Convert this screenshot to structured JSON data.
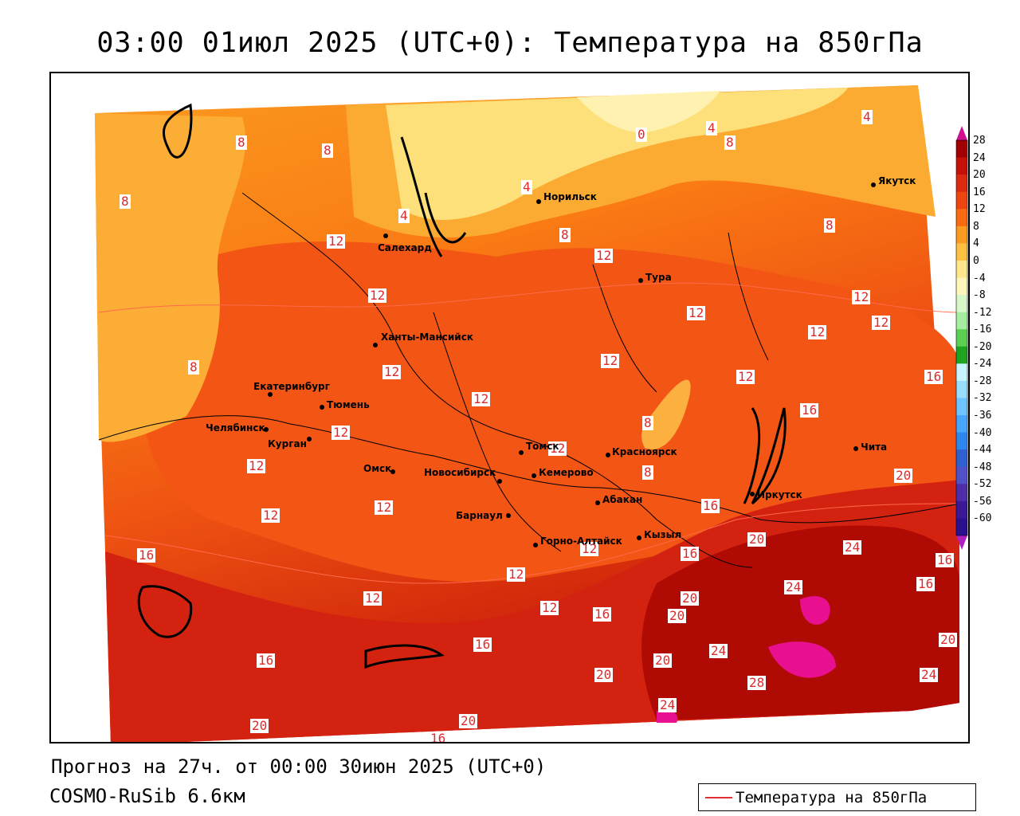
{
  "title": "03:00 01июл 2025 (UTC+0): Температура на 850гПа",
  "footer": {
    "forecast": "Прогноз на 27ч. от 00:00 30июн 2025 (UTC+0)",
    "model": "COSMO-RuSib 6.6км"
  },
  "legend": {
    "label": "Температура на 850гПа",
    "line_color": "#e03030"
  },
  "colorbar": {
    "ticks": [
      "28",
      "24",
      "20",
      "16",
      "12",
      "8",
      "4",
      "0",
      "-4",
      "-8",
      "-12",
      "-16",
      "-20",
      "-24",
      "-28",
      "-32",
      "-36",
      "-40",
      "-44",
      "-48",
      "-52",
      "-56",
      "-60"
    ],
    "colors": [
      "#a00000",
      "#c41208",
      "#dc2a10",
      "#ee4410",
      "#fa6a10",
      "#fb9a20",
      "#fdc040",
      "#fde68c",
      "#fff6bb",
      "#d7f7c8",
      "#a6eda1",
      "#5ccf52",
      "#1fa422",
      "#c8f4ff",
      "#98dcff",
      "#6ec4ff",
      "#48a6ff",
      "#2e86f0",
      "#3060d0",
      "#5050c8",
      "#4e2ea8",
      "#3a1898",
      "#2a1090"
    ],
    "top_arrow_color": "#d01090",
    "bottom_arrow_color": "#b020c0"
  },
  "cities": [
    {
      "name": "Якутск"
    },
    {
      "name": "Норильск"
    },
    {
      "name": "Салехард"
    },
    {
      "name": "Тура"
    },
    {
      "name": "Ханты-Мансийск"
    },
    {
      "name": "Екатеринбург"
    },
    {
      "name": "Тюмень"
    },
    {
      "name": "Челябинск"
    },
    {
      "name": "Курган"
    },
    {
      "name": "Омск"
    },
    {
      "name": "Томск"
    },
    {
      "name": "Красноярск"
    },
    {
      "name": "Новосибирск"
    },
    {
      "name": "Кемерово"
    },
    {
      "name": "Абакан"
    },
    {
      "name": "Барнаул"
    },
    {
      "name": "Иркутск"
    },
    {
      "name": "Чита"
    },
    {
      "name": "Горно-Алтайск"
    },
    {
      "name": "Кызыл"
    }
  ],
  "contour_labels": [
    "0",
    "4",
    "4",
    "4",
    "4",
    "8",
    "8",
    "8",
    "8",
    "8",
    "8",
    "8",
    "8",
    "8",
    "12",
    "12",
    "12",
    "12",
    "12",
    "12",
    "12",
    "12",
    "12",
    "12",
    "12",
    "12",
    "12",
    "12",
    "12",
    "12",
    "12",
    "12",
    "12",
    "12",
    "16",
    "16",
    "16",
    "16",
    "16",
    "16",
    "16",
    "16",
    "16",
    "16",
    "16",
    "20",
    "20",
    "20",
    "20",
    "20",
    "20",
    "20",
    "20",
    "20",
    "24",
    "24",
    "24",
    "24",
    "24",
    "28"
  ]
}
